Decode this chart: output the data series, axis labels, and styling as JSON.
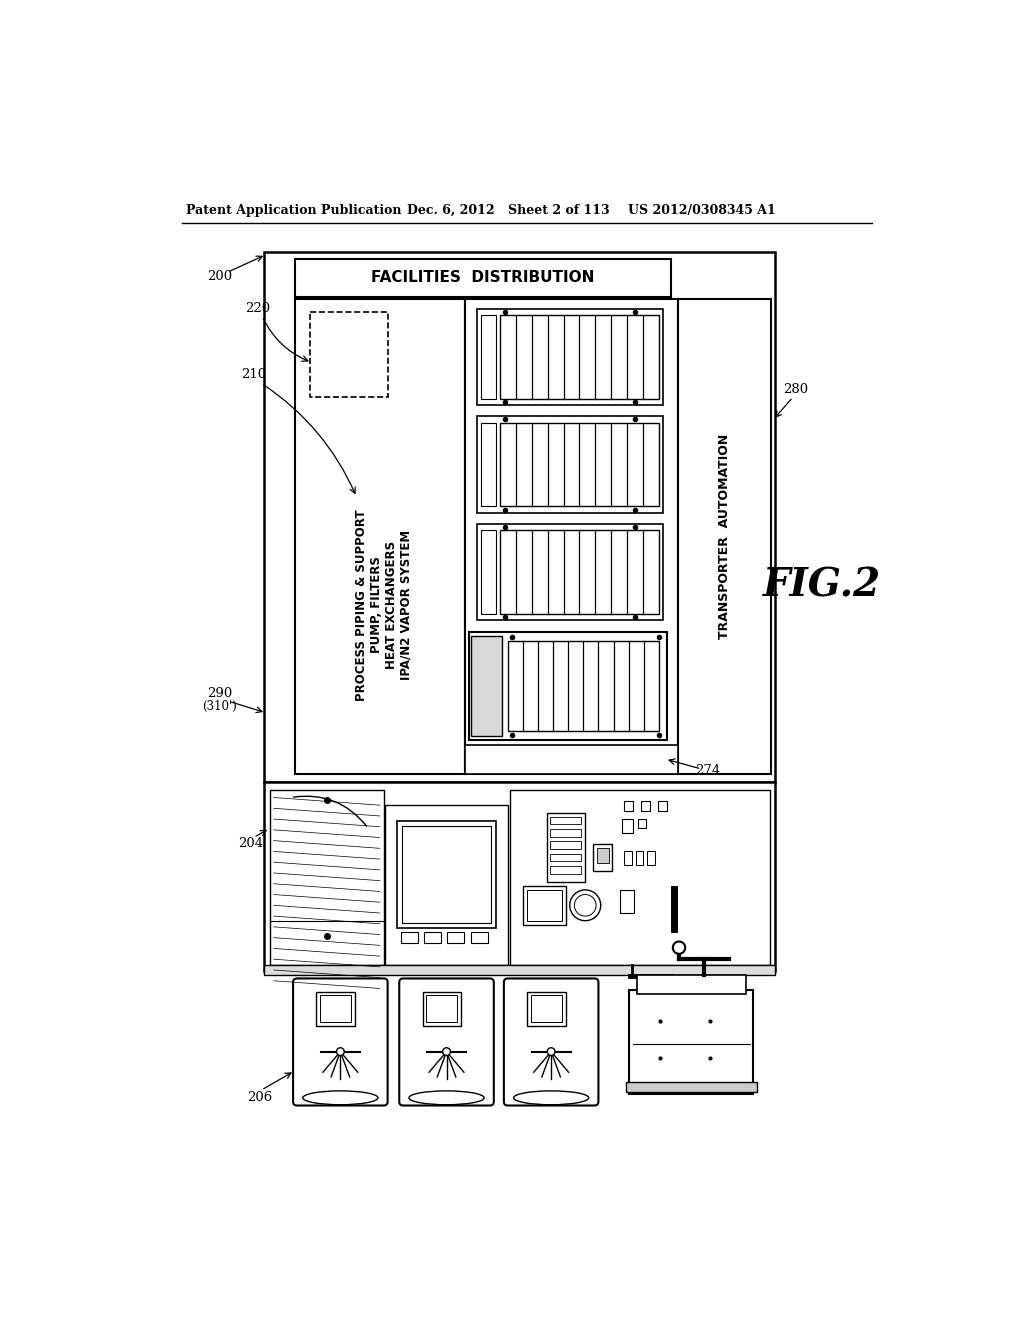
{
  "bg_color": "#ffffff",
  "header_line1": "Patent Application Publication",
  "header_line2": "Dec. 6, 2012",
  "header_line3": "Sheet 2 of 113",
  "header_line4": "US 2012/0308345 A1",
  "fig_label": "FIG.2"
}
